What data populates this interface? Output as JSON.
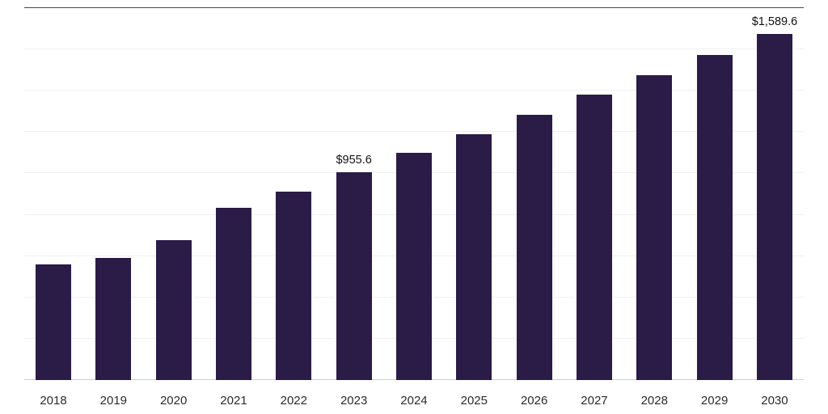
{
  "chart_data": {
    "type": "bar",
    "title": "",
    "xlabel": "",
    "ylabel": "",
    "categories": [
      "2018",
      "2019",
      "2020",
      "2021",
      "2022",
      "2023",
      "2024",
      "2025",
      "2026",
      "2027",
      "2028",
      "2029",
      "2030"
    ],
    "values": [
      531,
      561,
      643,
      791,
      866,
      955.6,
      1044,
      1129,
      1219,
      1311,
      1400,
      1493,
      1589.6
    ],
    "data_labels": {
      "2023": "$955.6",
      "2030": "$1,589.6"
    },
    "ylim": [
      0,
      1710
    ],
    "grid": true,
    "grid_intervals": 9,
    "legend": false,
    "bar_color": "#2b1b47",
    "background_color": "#ffffff",
    "top_gridline_color": "#474747",
    "axis_line_color": "#cfcfcf",
    "gridline_color": "#f0f0f0"
  }
}
